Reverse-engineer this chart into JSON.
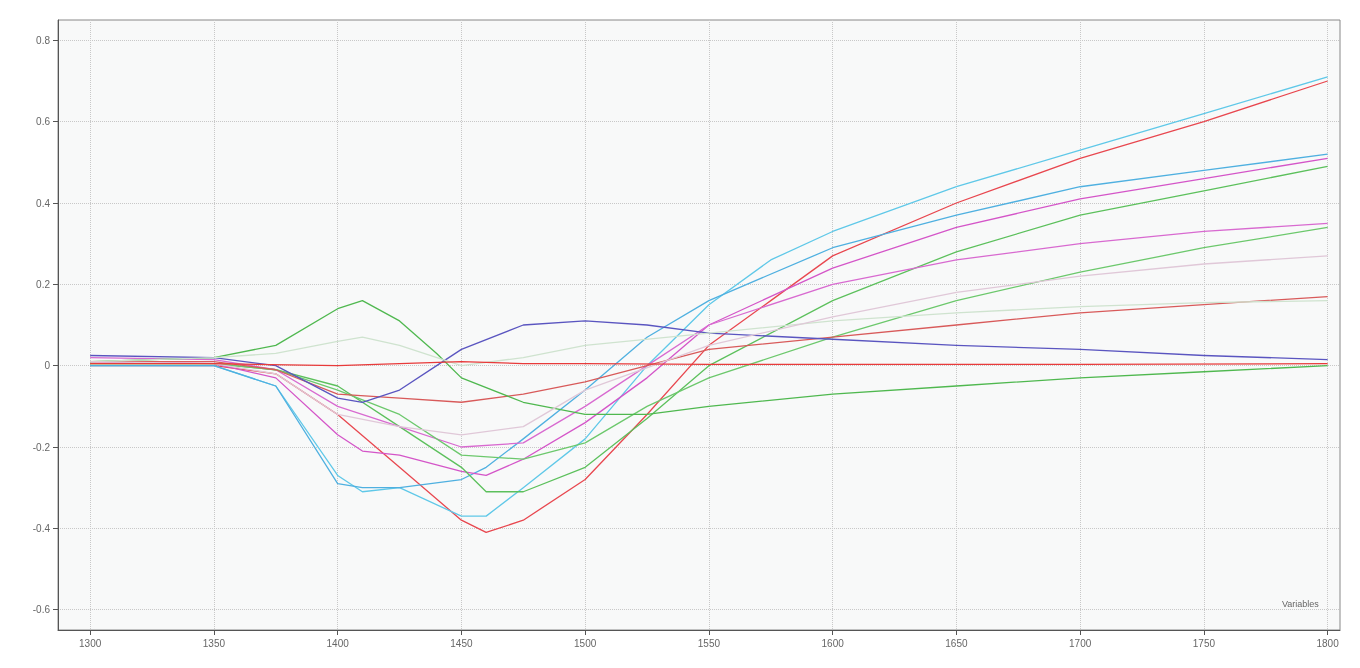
{
  "chart_data": {
    "type": "line",
    "xlabel": "Variables",
    "xlim": [
      1287,
      1805
    ],
    "xticks": [
      1300,
      1350,
      1400,
      1450,
      1500,
      1550,
      1600,
      1650,
      1700,
      1750,
      1800
    ],
    "ylim": [
      -0.65,
      0.85
    ],
    "yticks": [
      -0.6,
      -0.4,
      -0.2,
      0,
      0.2,
      0.4,
      0.6,
      0.8
    ],
    "grid": true,
    "marker": "none",
    "line_style": "solid",
    "series": [
      {
        "color": "#e8474f",
        "x": [
          1300,
          1350,
          1375,
          1400,
          1425,
          1450,
          1460,
          1475,
          1500,
          1525,
          1550,
          1575,
          1600,
          1650,
          1700,
          1750,
          1800
        ],
        "values": [
          0,
          0,
          -0.02,
          -0.12,
          -0.25,
          -0.38,
          -0.41,
          -0.38,
          -0.28,
          -0.12,
          0.05,
          0.16,
          0.27,
          0.4,
          0.51,
          0.6,
          0.7
        ]
      },
      {
        "color": "#5fc8e8",
        "x": [
          1300,
          1350,
          1375,
          1400,
          1410,
          1425,
          1450,
          1460,
          1475,
          1500,
          1525,
          1550,
          1575,
          1600,
          1650,
          1700,
          1750,
          1800
        ],
        "values": [
          0,
          0,
          -0.05,
          -0.27,
          -0.31,
          -0.3,
          -0.37,
          -0.37,
          -0.3,
          -0.18,
          0,
          0.15,
          0.26,
          0.33,
          0.44,
          0.53,
          0.62,
          0.71
        ]
      },
      {
        "color": "#4fb0e0",
        "x": [
          1300,
          1350,
          1375,
          1400,
          1410,
          1425,
          1450,
          1460,
          1475,
          1500,
          1525,
          1550,
          1600,
          1650,
          1700,
          1750,
          1800
        ],
        "values": [
          0,
          0,
          -0.05,
          -0.29,
          -0.3,
          -0.3,
          -0.28,
          -0.25,
          -0.18,
          -0.06,
          0.07,
          0.16,
          0.29,
          0.37,
          0.44,
          0.48,
          0.52
        ]
      },
      {
        "color": "#d455c8",
        "x": [
          1300,
          1350,
          1375,
          1400,
          1410,
          1425,
          1450,
          1460,
          1475,
          1500,
          1525,
          1550,
          1600,
          1650,
          1700,
          1750,
          1800
        ],
        "values": [
          0.01,
          0.005,
          -0.03,
          -0.17,
          -0.21,
          -0.22,
          -0.26,
          -0.27,
          -0.23,
          -0.14,
          -0.03,
          0.1,
          0.24,
          0.34,
          0.41,
          0.46,
          0.51
        ]
      },
      {
        "color": "#5cc05c",
        "x": [
          1300,
          1350,
          1375,
          1400,
          1425,
          1450,
          1460,
          1475,
          1500,
          1525,
          1550,
          1600,
          1650,
          1700,
          1750,
          1800
        ],
        "values": [
          0.005,
          0.005,
          -0.01,
          -0.05,
          -0.15,
          -0.25,
          -0.31,
          -0.31,
          -0.25,
          -0.13,
          0,
          0.16,
          0.28,
          0.37,
          0.43,
          0.49
        ]
      },
      {
        "color": "#d86ad0",
        "x": [
          1300,
          1350,
          1375,
          1400,
          1425,
          1450,
          1475,
          1500,
          1525,
          1550,
          1600,
          1650,
          1700,
          1750,
          1800
        ],
        "values": [
          0.02,
          0.015,
          -0.01,
          -0.1,
          -0.15,
          -0.2,
          -0.19,
          -0.1,
          0,
          0.1,
          0.2,
          0.26,
          0.3,
          0.33,
          0.35
        ]
      },
      {
        "color": "#6cc86c",
        "x": [
          1300,
          1350,
          1375,
          1400,
          1425,
          1450,
          1475,
          1500,
          1525,
          1550,
          1600,
          1650,
          1700,
          1750,
          1800
        ],
        "values": [
          0.005,
          0.005,
          -0.01,
          -0.06,
          -0.12,
          -0.22,
          -0.23,
          -0.19,
          -0.1,
          -0.03,
          0.07,
          0.16,
          0.23,
          0.29,
          0.34
        ]
      },
      {
        "color": "#d85a5a",
        "x": [
          1300,
          1350,
          1375,
          1400,
          1425,
          1450,
          1475,
          1500,
          1525,
          1550,
          1600,
          1650,
          1700,
          1750,
          1800
        ],
        "values": [
          0.01,
          0.01,
          -0.01,
          -0.07,
          -0.08,
          -0.09,
          -0.07,
          -0.04,
          0,
          0.04,
          0.07,
          0.1,
          0.13,
          0.15,
          0.17
        ]
      },
      {
        "color": "#4fb84f",
        "x": [
          1300,
          1350,
          1375,
          1400,
          1410,
          1425,
          1440,
          1450,
          1475,
          1500,
          1525,
          1550,
          1600,
          1650,
          1700,
          1750,
          1800
        ],
        "values": [
          0.01,
          0.02,
          0.05,
          0.14,
          0.16,
          0.11,
          0.03,
          -0.03,
          -0.09,
          -0.12,
          -0.12,
          -0.1,
          -0.07,
          -0.05,
          -0.03,
          -0.015,
          0
        ]
      },
      {
        "color": "#5a55c0",
        "x": [
          1300,
          1350,
          1375,
          1400,
          1410,
          1425,
          1440,
          1450,
          1475,
          1500,
          1525,
          1550,
          1600,
          1650,
          1700,
          1750,
          1800
        ],
        "values": [
          0.025,
          0.02,
          0,
          -0.08,
          -0.09,
          -0.06,
          0,
          0.04,
          0.1,
          0.11,
          0.1,
          0.08,
          0.065,
          0.05,
          0.04,
          0.025,
          0.015
        ]
      },
      {
        "color": "#cfe3cf",
        "x": [
          1300,
          1350,
          1375,
          1400,
          1410,
          1425,
          1450,
          1475,
          1500,
          1550,
          1600,
          1650,
          1700,
          1750,
          1800
        ],
        "values": [
          0.01,
          0.02,
          0.03,
          0.06,
          0.07,
          0.05,
          0,
          0.02,
          0.05,
          0.08,
          0.11,
          0.13,
          0.145,
          0.155,
          0.16
        ]
      },
      {
        "color": "#e0c8d8",
        "x": [
          1300,
          1350,
          1375,
          1400,
          1425,
          1450,
          1475,
          1500,
          1550,
          1600,
          1650,
          1700,
          1750,
          1800
        ],
        "values": [
          0.01,
          0.005,
          -0.02,
          -0.12,
          -0.15,
          -0.17,
          -0.15,
          -0.06,
          0.05,
          0.12,
          0.18,
          0.22,
          0.25,
          0.27
        ]
      },
      {
        "color": "#e83a3a",
        "x": [
          1300,
          1350,
          1400,
          1425,
          1450,
          1475,
          1500,
          1550,
          1600,
          1700,
          1800
        ],
        "values": [
          0.005,
          0.005,
          0,
          0.005,
          0.01,
          0.005,
          0.005,
          0.003,
          0.003,
          0.003,
          0.005
        ]
      }
    ]
  }
}
